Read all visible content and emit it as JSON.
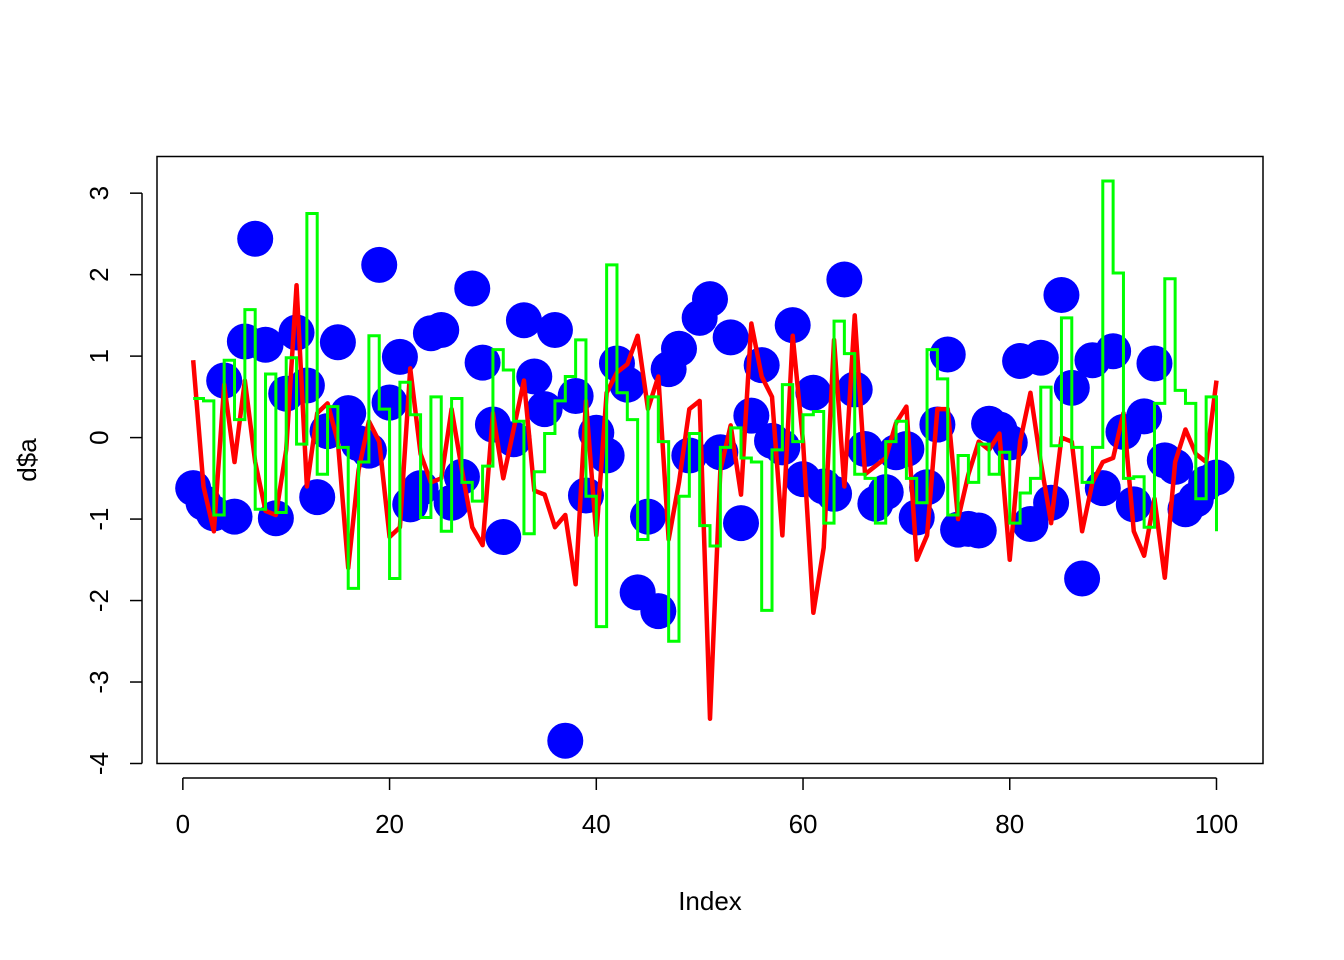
{
  "chart_data": {
    "type": "scatter",
    "xlabel": "Index",
    "ylabel": "d$a",
    "xlim": [
      -2.5,
      104.5
    ],
    "ylim": [
      -4,
      3.45
    ],
    "x_ticks": [
      0,
      20,
      40,
      60,
      80,
      100
    ],
    "y_ticks": [
      -4,
      -3,
      -2,
      -1,
      0,
      1,
      2,
      3
    ],
    "x_tick_labels": [
      "0",
      "20",
      "40",
      "60",
      "80",
      "100"
    ],
    "y_tick_labels": [
      "-4",
      "-3",
      "-2",
      "-1",
      "0",
      "1",
      "2",
      "3"
    ],
    "grid": false,
    "series": [
      {
        "style": "points",
        "color": "#0000ff",
        "x": [
          1,
          2,
          3,
          4,
          5,
          6,
          7,
          8,
          9,
          10,
          11,
          12,
          13,
          14,
          15,
          16,
          17,
          18,
          19,
          20,
          21,
          22,
          23,
          24,
          25,
          26,
          27,
          28,
          29,
          30,
          31,
          32,
          33,
          34,
          35,
          36,
          37,
          38,
          39,
          40,
          41,
          42,
          43,
          44,
          45,
          46,
          47,
          48,
          49,
          50,
          51,
          52,
          53,
          54,
          55,
          56,
          57,
          58,
          59,
          60,
          61,
          62,
          63,
          64,
          65,
          66,
          67,
          68,
          69,
          70,
          71,
          72,
          73,
          74,
          75,
          76,
          77,
          78,
          79,
          80,
          81,
          82,
          83,
          84,
          85,
          86,
          87,
          88,
          89,
          90,
          91,
          92,
          93,
          94,
          95,
          96,
          97,
          98,
          99,
          100
        ],
        "y": [
          -0.62,
          -0.8,
          -0.93,
          0.7,
          -0.97,
          1.18,
          2.44,
          1.14,
          -0.99,
          0.54,
          1.29,
          0.64,
          -0.73,
          0.08,
          1.17,
          0.3,
          -0.07,
          -0.16,
          2.12,
          0.43,
          0.99,
          -0.82,
          -0.62,
          1.28,
          1.32,
          -0.8,
          -0.48,
          1.83,
          0.92,
          0.16,
          -1.22,
          -0.02,
          1.44,
          0.75,
          0.35,
          1.32,
          -3.72,
          0.51,
          -0.71,
          0.06,
          -0.22,
          0.91,
          0.65,
          -1.9,
          -0.97,
          -2.13,
          0.84,
          1.09,
          -0.22,
          1.47,
          1.7,
          -0.18,
          1.23,
          -1.05,
          0.27,
          0.89,
          -0.04,
          -0.12,
          1.38,
          -0.51,
          0.55,
          -0.6,
          -0.69,
          1.94,
          0.59,
          -0.14,
          -0.81,
          -0.67,
          -0.18,
          -0.14,
          -0.98,
          -0.61,
          0.16,
          1.02,
          -1.13,
          -1.12,
          -1.14,
          0.17,
          0.1,
          -0.06,
          0.94,
          -1.06,
          0.98,
          -0.8,
          1.75,
          0.61,
          -1.73,
          0.95,
          -0.62,
          1.06,
          0.07,
          -0.82,
          0.26,
          0.91,
          -0.28,
          -0.36,
          -0.88,
          -0.76,
          -0.56,
          -0.49
        ]
      },
      {
        "style": "line",
        "color": "#ff0000",
        "x": [
          1,
          2,
          3,
          4,
          5,
          6,
          7,
          8,
          9,
          10,
          11,
          12,
          13,
          14,
          15,
          16,
          17,
          18,
          19,
          20,
          21,
          22,
          23,
          24,
          25,
          26,
          27,
          28,
          29,
          30,
          31,
          32,
          33,
          34,
          35,
          36,
          37,
          38,
          39,
          40,
          41,
          42,
          43,
          44,
          45,
          46,
          47,
          48,
          49,
          50,
          51,
          52,
          53,
          54,
          55,
          56,
          57,
          58,
          59,
          60,
          61,
          62,
          63,
          64,
          65,
          66,
          67,
          68,
          69,
          70,
          71,
          72,
          73,
          74,
          75,
          76,
          77,
          78,
          79,
          80,
          81,
          82,
          83,
          84,
          85,
          86,
          87,
          88,
          89,
          90,
          91,
          92,
          93,
          94,
          95,
          96,
          97,
          98,
          99,
          100
        ],
        "y": [
          0.95,
          -0.6,
          -1.15,
          0.65,
          -0.3,
          0.7,
          -0.3,
          -0.9,
          -0.95,
          -0.15,
          1.87,
          -0.6,
          0.3,
          0.42,
          -0.05,
          -1.6,
          -0.4,
          0.2,
          -0.05,
          -1.22,
          -1.1,
          0.85,
          -0.2,
          -0.55,
          -0.5,
          0.35,
          -0.4,
          -1.1,
          -1.32,
          0.3,
          -0.5,
          0.1,
          0.7,
          -0.65,
          -0.7,
          -1.1,
          -0.95,
          -1.8,
          0.45,
          -1.2,
          0.55,
          0.8,
          0.9,
          1.25,
          0.35,
          0.75,
          -1.25,
          -0.55,
          0.35,
          0.45,
          -3.45,
          -0.4,
          0.15,
          -0.7,
          1.4,
          0.75,
          0.5,
          -1.2,
          1.25,
          -0.05,
          -2.15,
          -1.35,
          1.2,
          -0.6,
          1.5,
          -0.45,
          -0.35,
          -0.25,
          0.18,
          0.38,
          -1.5,
          -1.2,
          0.35,
          0.35,
          -1.0,
          -0.45,
          -0.05,
          -0.15,
          0.05,
          -1.5,
          -0.05,
          0.55,
          -0.3,
          -1.05,
          0.0,
          -0.05,
          -1.15,
          -0.55,
          -0.3,
          -0.25,
          0.3,
          -1.15,
          -1.45,
          -0.75,
          -1.72,
          -0.3,
          0.1,
          -0.2,
          -0.3,
          0.7
        ]
      },
      {
        "style": "step",
        "color": "#00ff00",
        "x": [
          1,
          2,
          3,
          4,
          5,
          6,
          7,
          8,
          9,
          10,
          11,
          12,
          13,
          14,
          15,
          16,
          17,
          18,
          19,
          20,
          21,
          22,
          23,
          24,
          25,
          26,
          27,
          28,
          29,
          30,
          31,
          32,
          33,
          34,
          35,
          36,
          37,
          38,
          39,
          40,
          41,
          42,
          43,
          44,
          45,
          46,
          47,
          48,
          49,
          50,
          51,
          52,
          53,
          54,
          55,
          56,
          57,
          58,
          59,
          60,
          61,
          62,
          63,
          64,
          65,
          66,
          67,
          68,
          69,
          70,
          71,
          72,
          73,
          74,
          75,
          76,
          77,
          78,
          79,
          80,
          81,
          82,
          83,
          84,
          85,
          86,
          87,
          88,
          89,
          90,
          91,
          92,
          93,
          94,
          95,
          96,
          97,
          98,
          99,
          100
        ],
        "y": [
          0.48,
          0.45,
          -0.95,
          0.95,
          0.22,
          1.57,
          -0.88,
          0.78,
          -0.92,
          0.98,
          -0.08,
          2.75,
          -0.45,
          0.38,
          -0.12,
          -1.85,
          -0.3,
          1.25,
          0.35,
          -1.73,
          0.68,
          0.28,
          -0.98,
          0.5,
          -1.15,
          0.48,
          -0.55,
          -0.78,
          -0.35,
          1.08,
          0.83,
          0.2,
          -1.18,
          -0.42,
          0.05,
          0.45,
          0.75,
          1.2,
          -0.72,
          -2.32,
          2.12,
          0.55,
          0.22,
          -1.25,
          0.5,
          -0.05,
          -2.5,
          -0.72,
          0.05,
          -1.08,
          -1.33,
          -0.12,
          0.12,
          -0.25,
          -0.3,
          -2.12,
          -0.15,
          0.65,
          -0.05,
          0.28,
          0.32,
          -1.05,
          1.43,
          1.03,
          -0.45,
          -0.5,
          -1.05,
          -0.05,
          0.2,
          -0.5,
          -0.8,
          1.08,
          0.72,
          -0.95,
          -0.22,
          -0.55,
          -0.08,
          -0.45,
          -0.18,
          -1.05,
          -0.68,
          -0.5,
          0.62,
          -0.1,
          1.47,
          -0.12,
          -0.55,
          -0.12,
          3.15,
          2.02,
          -0.5,
          -0.48,
          -1.1,
          0.42,
          1.95,
          0.58,
          0.42,
          -0.75,
          0.5,
          -1.15
        ]
      }
    ]
  }
}
